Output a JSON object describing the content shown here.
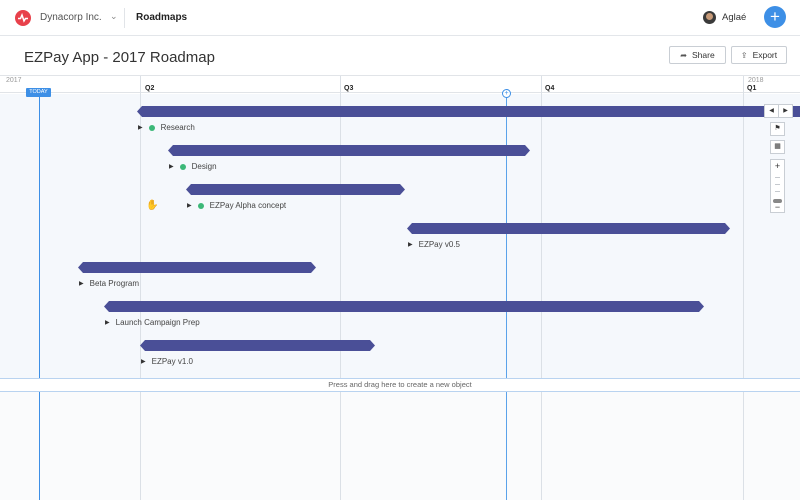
{
  "nav": {
    "org": "Dynacorp Inc.",
    "section": "Roadmaps",
    "user": "Aglaé",
    "add_label": "+"
  },
  "header": {
    "title": "EZPay App - 2017 Roadmap",
    "share_label": "Share",
    "export_label": "Export"
  },
  "timeline": {
    "years": [
      "2017",
      "2018"
    ],
    "quarters": [
      "Q2",
      "Q3",
      "Q4",
      "Q1"
    ],
    "today_label": "TODAY"
  },
  "items": [
    {
      "label": "Research",
      "status": "green"
    },
    {
      "label": "Design",
      "status": "green"
    },
    {
      "label": "EZPay Alpha concept",
      "status": "green"
    },
    {
      "label": "EZPay v0.5"
    },
    {
      "label": "Beta Program"
    },
    {
      "label": "Launch Campaign Prep"
    },
    {
      "label": "EZPay v1.0"
    }
  ],
  "create_hint": "Press and drag here to create a new object",
  "colors": {
    "bar": "#4a4f97",
    "accent": "#3d8fe6",
    "status_green": "#3cb878",
    "logo": "#e8414b"
  }
}
